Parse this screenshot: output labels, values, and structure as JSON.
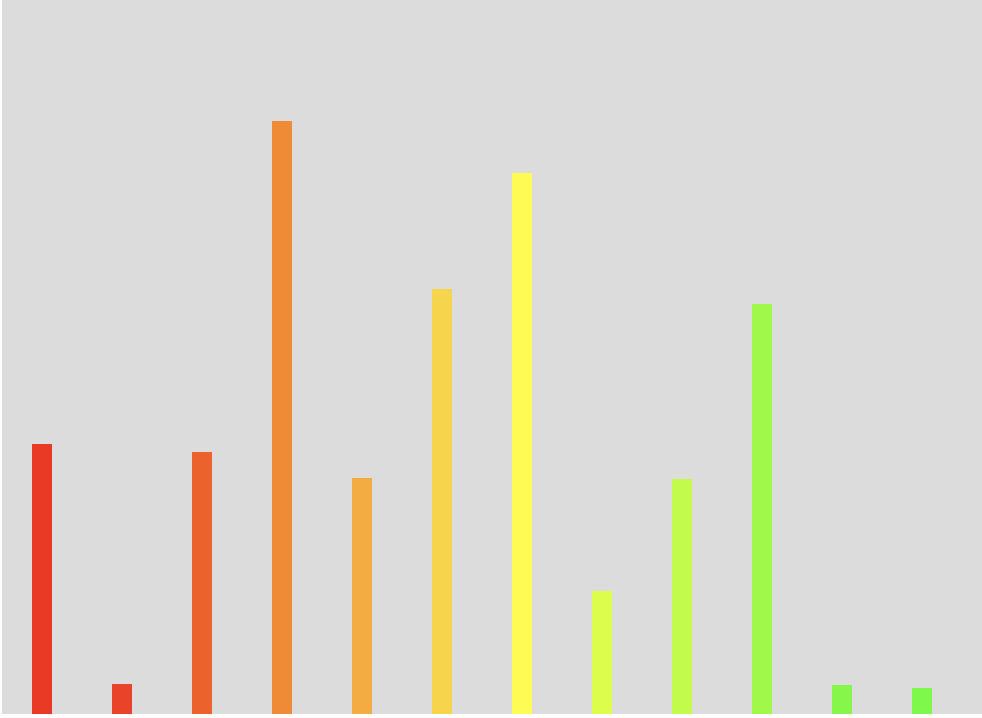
{
  "chart_data": {
    "type": "bar",
    "categories": [
      "",
      "",
      "",
      "",
      "",
      "",
      "",
      "",
      "",
      "",
      "",
      ""
    ],
    "values": [
      270,
      30,
      262,
      593,
      236,
      425,
      541,
      123,
      235,
      410,
      29,
      26
    ],
    "colors": [
      "#e93a26",
      "#e9442a",
      "#ec622c",
      "#ef8a36",
      "#f3ac42",
      "#f6d44c",
      "#fdfb54",
      "#ddfd4c",
      "#c2fb4c",
      "#a0f84a",
      "#86f74a",
      "#7ef84a"
    ],
    "title": "",
    "xlabel": "",
    "ylabel": "",
    "ylim": [
      0,
      714
    ],
    "grid": false,
    "legend": "none"
  }
}
